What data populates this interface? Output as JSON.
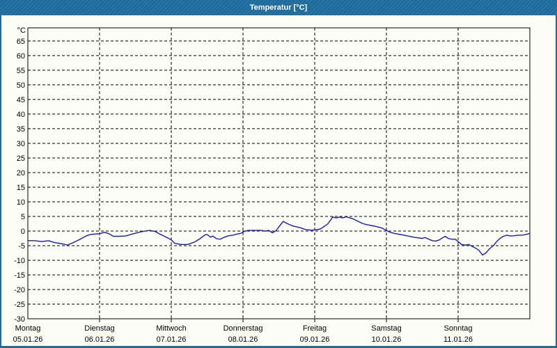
{
  "window": {
    "title": "Temperatur [°C]"
  },
  "colors": {
    "titlebar": "#1d6c9e",
    "frame_border": "#1d6c9e",
    "title_text": "#ffffff",
    "content_background": "#fcfdf5",
    "grid": "#000000",
    "plot_border": "#000000",
    "axis_text": "#000000",
    "line": "#1a1ac8"
  },
  "chart_data": {
    "type": "line",
    "title": "Temperatur [°C]",
    "ylabel_unit": "°C",
    "xlabel": "",
    "grid": "dashed",
    "legend": "none",
    "ylim": [
      -30,
      69.5
    ],
    "y_tick_step": 5,
    "y_tick_labels": [
      "65",
      "60",
      "55",
      "50",
      "45",
      "40",
      "35",
      "30",
      "25",
      "20",
      "15",
      "10",
      "5",
      "0",
      "-5",
      "-10",
      "-15",
      "-20",
      "-25",
      "-30"
    ],
    "x_range_days": [
      0,
      7
    ],
    "x_categories": [
      {
        "weekday": "Montag",
        "date": "05.01.26"
      },
      {
        "weekday": "Dienstag",
        "date": "06.01.26"
      },
      {
        "weekday": "Mittwoch",
        "date": "07.01.26"
      },
      {
        "weekday": "Donnerstag",
        "date": "08.01.26"
      },
      {
        "weekday": "Freitag",
        "date": "09.01.26"
      },
      {
        "weekday": "Samstag",
        "date": "10.01.26"
      },
      {
        "weekday": "Sonntag",
        "date": "11.01.26"
      }
    ],
    "series": [
      {
        "name": "Temperatur",
        "color": "#1a1ac8",
        "points": [
          [
            0.0,
            -3.3
          ],
          [
            0.1,
            -3.3
          ],
          [
            0.19,
            -3.6
          ],
          [
            0.29,
            -3.3
          ],
          [
            0.37,
            -3.9
          ],
          [
            0.49,
            -4.4
          ],
          [
            0.55,
            -4.8
          ],
          [
            0.61,
            -4.2
          ],
          [
            0.68,
            -3.4
          ],
          [
            0.75,
            -2.5
          ],
          [
            0.81,
            -1.7
          ],
          [
            0.87,
            -1.2
          ],
          [
            0.94,
            -1.0
          ],
          [
            1.0,
            -0.9
          ],
          [
            1.07,
            -0.4
          ],
          [
            1.14,
            -1.0
          ],
          [
            1.19,
            -1.8
          ],
          [
            1.28,
            -1.8
          ],
          [
            1.36,
            -1.7
          ],
          [
            1.46,
            -1.0
          ],
          [
            1.55,
            -0.4
          ],
          [
            1.63,
            0.0
          ],
          [
            1.7,
            0.2
          ],
          [
            1.77,
            -0.1
          ],
          [
            1.84,
            -1.0
          ],
          [
            1.94,
            -2.2
          ],
          [
            2.0,
            -3.0
          ],
          [
            2.05,
            -4.2
          ],
          [
            2.14,
            -4.6
          ],
          [
            2.23,
            -4.6
          ],
          [
            2.33,
            -3.7
          ],
          [
            2.4,
            -2.6
          ],
          [
            2.47,
            -1.3
          ],
          [
            2.5,
            -1.2
          ],
          [
            2.55,
            -2.1
          ],
          [
            2.58,
            -1.7
          ],
          [
            2.63,
            -2.6
          ],
          [
            2.68,
            -2.8
          ],
          [
            2.74,
            -2.1
          ],
          [
            2.8,
            -1.6
          ],
          [
            2.86,
            -1.4
          ],
          [
            2.92,
            -1.0
          ],
          [
            2.97,
            -0.8
          ],
          [
            3.01,
            -0.2
          ],
          [
            3.07,
            0.2
          ],
          [
            3.17,
            0.2
          ],
          [
            3.26,
            0.2
          ],
          [
            3.31,
            0.0
          ],
          [
            3.36,
            0.2
          ],
          [
            3.41,
            -0.6
          ],
          [
            3.46,
            0.1
          ],
          [
            3.5,
            1.4
          ],
          [
            3.56,
            3.3
          ],
          [
            3.63,
            2.4
          ],
          [
            3.7,
            1.7
          ],
          [
            3.79,
            1.2
          ],
          [
            3.88,
            0.5
          ],
          [
            3.96,
            0.3
          ],
          [
            4.0,
            0.4
          ],
          [
            4.08,
            0.7
          ],
          [
            4.14,
            1.7
          ],
          [
            4.18,
            2.4
          ],
          [
            4.22,
            3.7
          ],
          [
            4.25,
            4.8
          ],
          [
            4.3,
            4.5
          ],
          [
            4.35,
            4.8
          ],
          [
            4.39,
            4.5
          ],
          [
            4.44,
            4.9
          ],
          [
            4.49,
            4.5
          ],
          [
            4.54,
            4.1
          ],
          [
            4.59,
            3.5
          ],
          [
            4.64,
            2.9
          ],
          [
            4.69,
            2.4
          ],
          [
            4.74,
            2.1
          ],
          [
            4.79,
            1.9
          ],
          [
            4.83,
            1.7
          ],
          [
            4.88,
            1.4
          ],
          [
            4.93,
            1.1
          ],
          [
            4.98,
            0.5
          ],
          [
            5.0,
            0.2
          ],
          [
            5.06,
            -0.5
          ],
          [
            5.11,
            -0.8
          ],
          [
            5.2,
            -1.2
          ],
          [
            5.3,
            -1.7
          ],
          [
            5.4,
            -2.2
          ],
          [
            5.5,
            -2.5
          ],
          [
            5.54,
            -2.2
          ],
          [
            5.59,
            -2.8
          ],
          [
            5.64,
            -3.3
          ],
          [
            5.69,
            -3.4
          ],
          [
            5.74,
            -3.0
          ],
          [
            5.79,
            -2.2
          ],
          [
            5.82,
            -1.8
          ],
          [
            5.86,
            -2.5
          ],
          [
            5.91,
            -2.8
          ],
          [
            5.96,
            -2.8
          ],
          [
            6.0,
            -3.6
          ],
          [
            6.05,
            -4.6
          ],
          [
            6.1,
            -4.8
          ],
          [
            6.15,
            -4.6
          ],
          [
            6.19,
            -5.2
          ],
          [
            6.24,
            -5.8
          ],
          [
            6.29,
            -6.6
          ],
          [
            6.34,
            -8.2
          ],
          [
            6.39,
            -7.4
          ],
          [
            6.44,
            -6.0
          ],
          [
            6.49,
            -5.0
          ],
          [
            6.53,
            -3.8
          ],
          [
            6.58,
            -2.6
          ],
          [
            6.63,
            -1.8
          ],
          [
            6.68,
            -1.4
          ],
          [
            6.73,
            -1.7
          ],
          [
            6.78,
            -1.6
          ],
          [
            6.83,
            -1.4
          ],
          [
            6.87,
            -1.4
          ],
          [
            6.92,
            -1.3
          ],
          [
            6.97,
            -1.0
          ],
          [
            7.0,
            -0.8
          ]
        ]
      }
    ]
  }
}
